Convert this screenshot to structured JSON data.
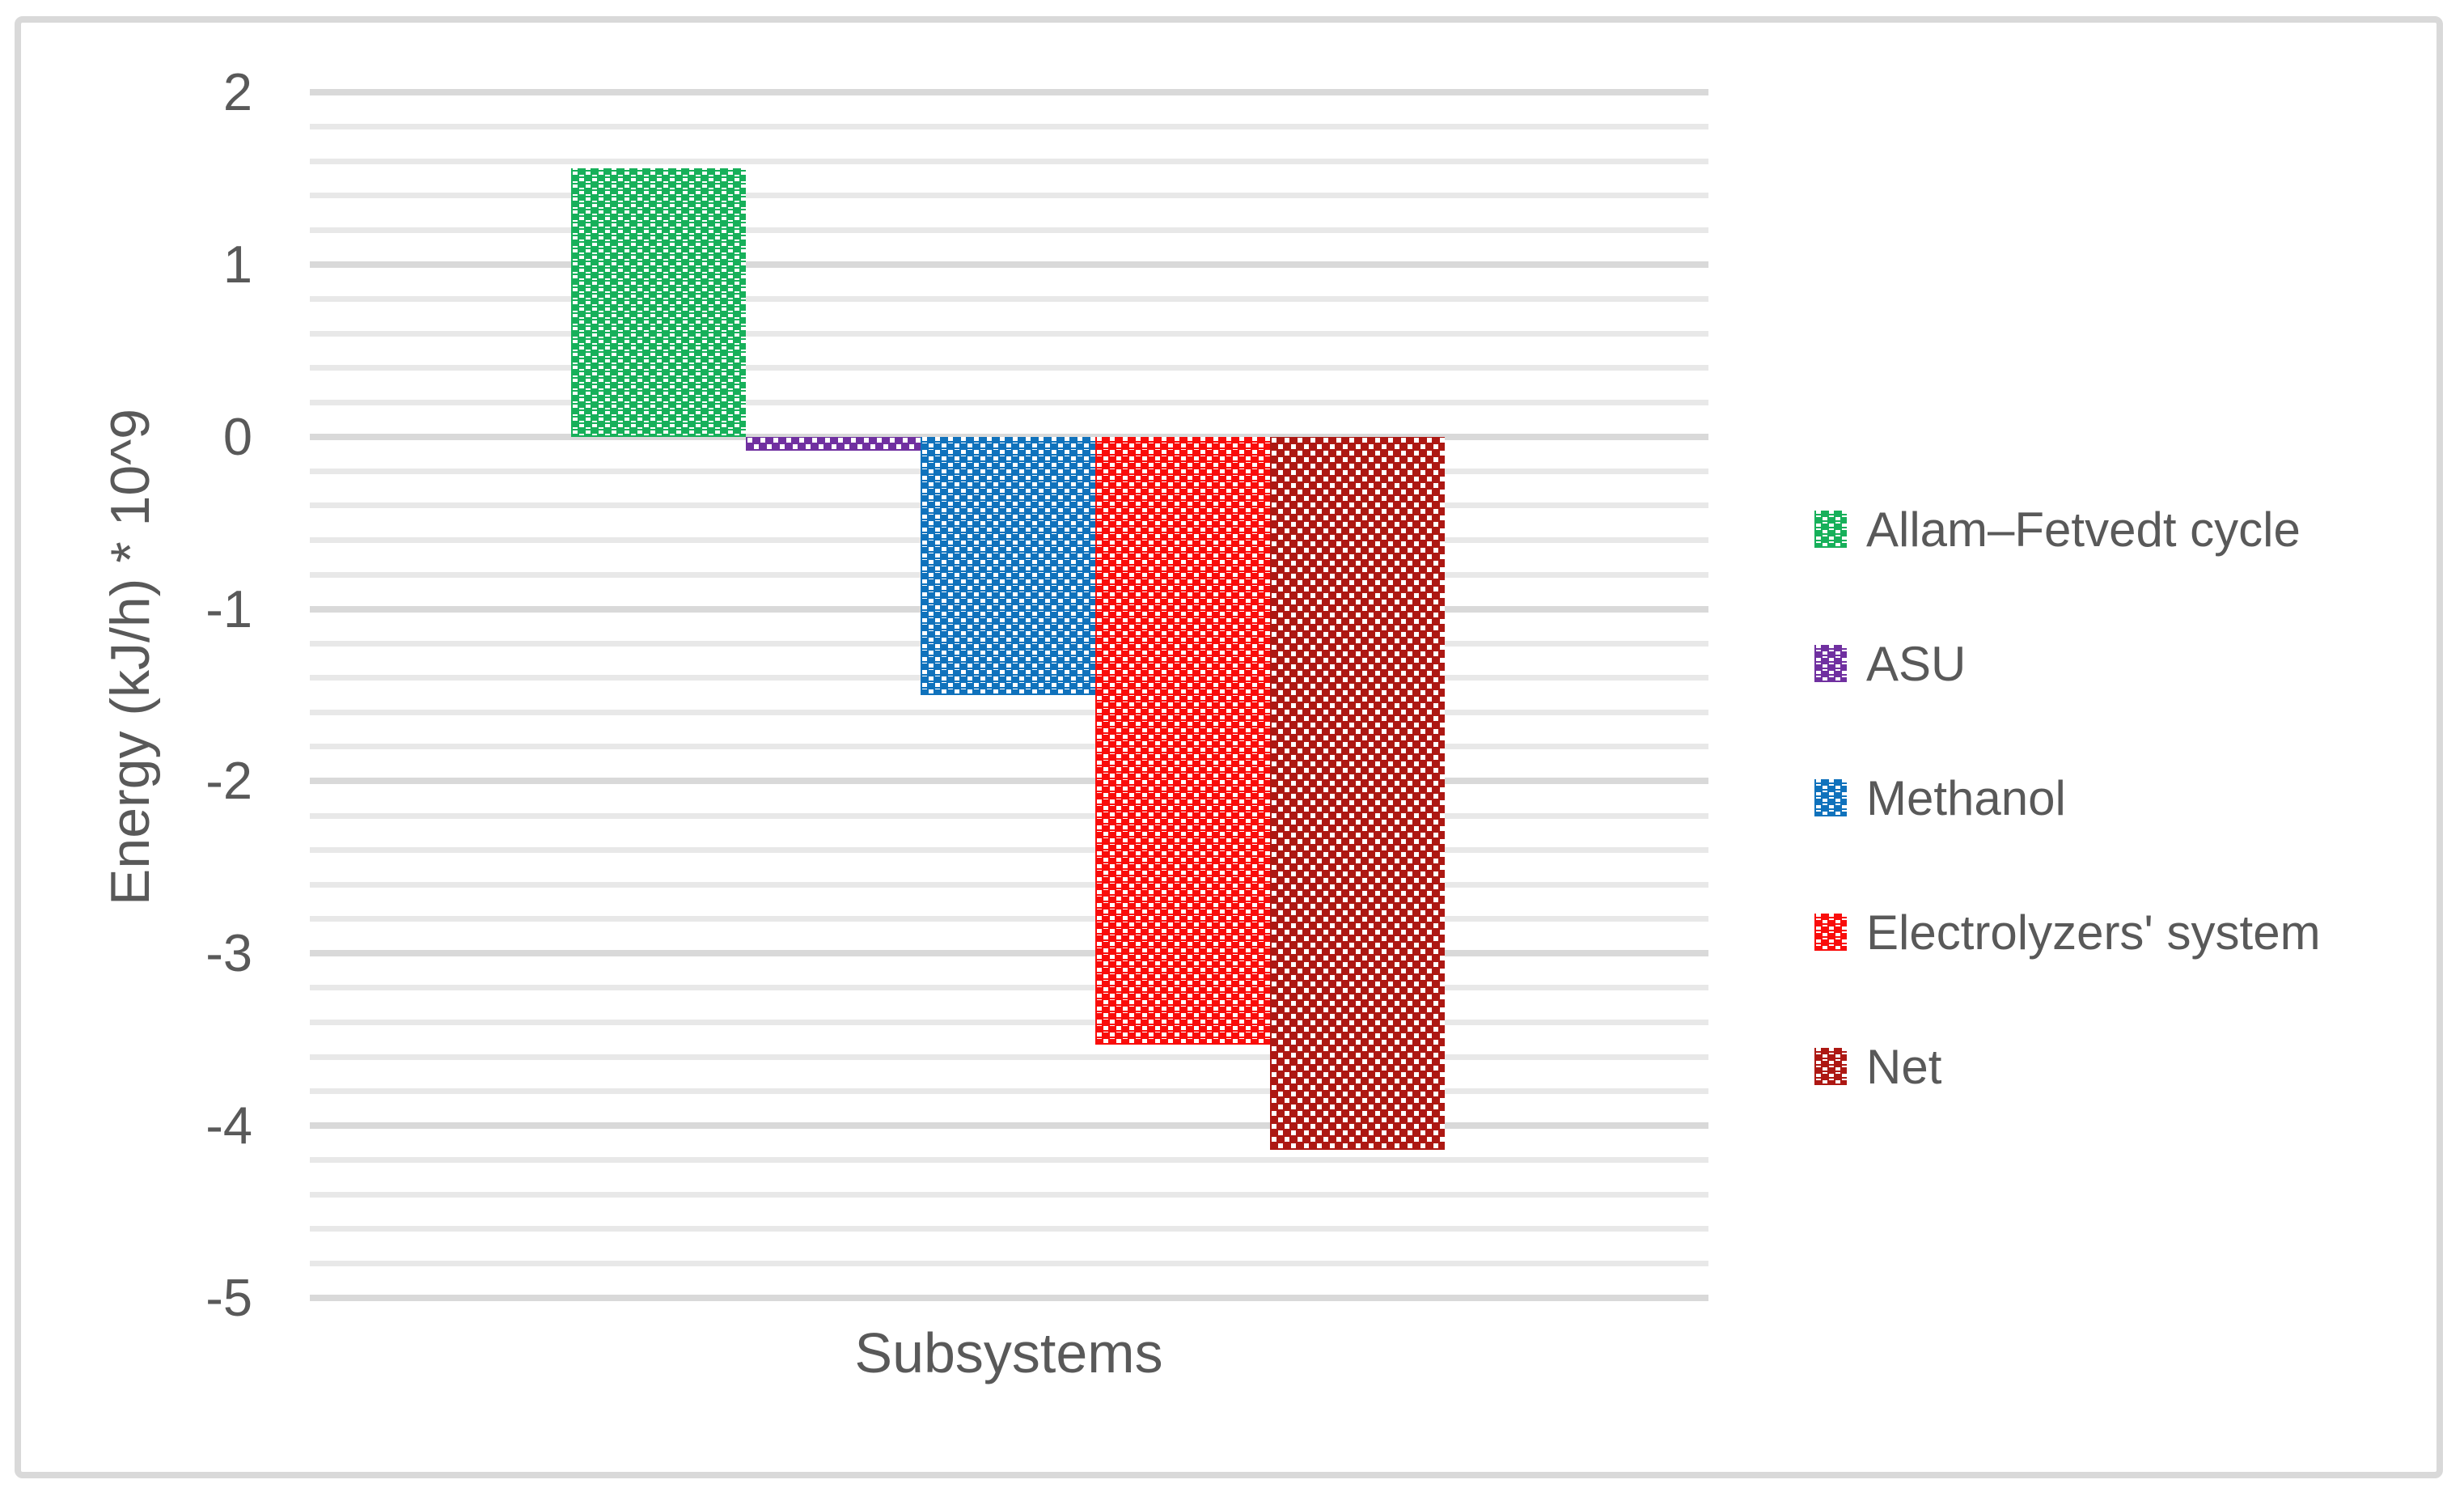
{
  "chart_data": {
    "type": "bar",
    "title": "",
    "categories": [
      "Subsystems"
    ],
    "series": [
      {
        "name": "Allam–Fetvedt cycle",
        "value": 1.56,
        "color": "#17b05a"
      },
      {
        "name": "ASU",
        "value": -0.08,
        "color": "#7030a0"
      },
      {
        "name": "Methanol",
        "value": -1.5,
        "color": "#1072bc"
      },
      {
        "name": "Electrolyzers' system",
        "value": -3.53,
        "color": "#f90d0b"
      },
      {
        "name": "Net",
        "value": -4.14,
        "color": "#ad1813"
      }
    ],
    "xlabel": "Subsystems",
    "ylabel": "Energy (kJ/h) * 10^9",
    "ylim": [
      -5,
      2
    ],
    "y_major_step": 1,
    "y_minor_step": 0.2,
    "grid": "horizontal",
    "legend_position": "right"
  },
  "axes": {
    "x_title": "Subsystems",
    "y_title": "Energy (kJ/h) * 10^9",
    "y_ticks": [
      "2",
      "1",
      "0",
      "-1",
      "-2",
      "-3",
      "-4",
      "-5"
    ]
  },
  "colors": {
    "tick_text": "#595959",
    "minor_gridline": "#e8e8e8",
    "major_gridline": "#d9d9d9",
    "chart_border": "#d9d9d9",
    "background": "#ffffff"
  }
}
